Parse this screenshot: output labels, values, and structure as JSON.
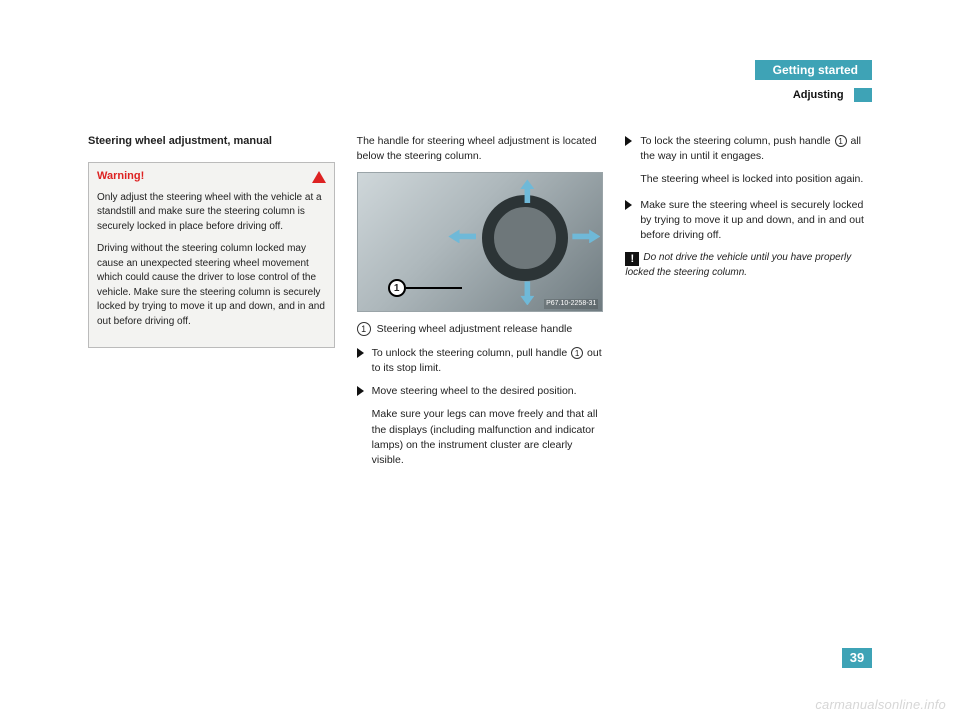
{
  "header": {
    "chapter": "Getting started",
    "section": "Adjusting",
    "chapter_bg": "#3ea3b6",
    "chapter_color": "#ffffff"
  },
  "col1": {
    "heading": "Steering wheel adjustment, manual",
    "warning": {
      "title": "Warning!",
      "p1": "Only adjust the steering wheel with the vehicle at a standstill and make sure the steering column is securely locked in place before driving off.",
      "p2": "Driving without the steering column locked may cause an unexpected steering wheel movement which could cause the driver to lose control of the vehicle. Make sure the steering column is securely locked by trying to move it up and down, and in and out before driving off."
    }
  },
  "col2": {
    "intro": "The handle for steering wheel adjustment is located below the steering column.",
    "figure_code": "P67.10-2258-31",
    "callout_num": "1",
    "caption": "Steering wheel adjustment release handle",
    "step1a": "To unlock the steering column, pull handle ",
    "step1b": " out to its stop limit.",
    "step2": "Move steering wheel to the desired position.",
    "step2_note": "Make sure your legs can move freely and that all the displays (including malfunction and indicator lamps) on the instrument cluster are clearly visible."
  },
  "col3": {
    "step3a": "To lock the steering column, push handle ",
    "step3b": " all the way in until it engages.",
    "step3_note": "The steering wheel is locked into position again.",
    "step4": "Make sure the steering wheel is securely locked by trying to move it up and down, and in and out before driving off.",
    "note": "Do not drive the vehicle until you have properly locked the steering column."
  },
  "page_number": "39",
  "watermark": "carmanualsonline.info"
}
